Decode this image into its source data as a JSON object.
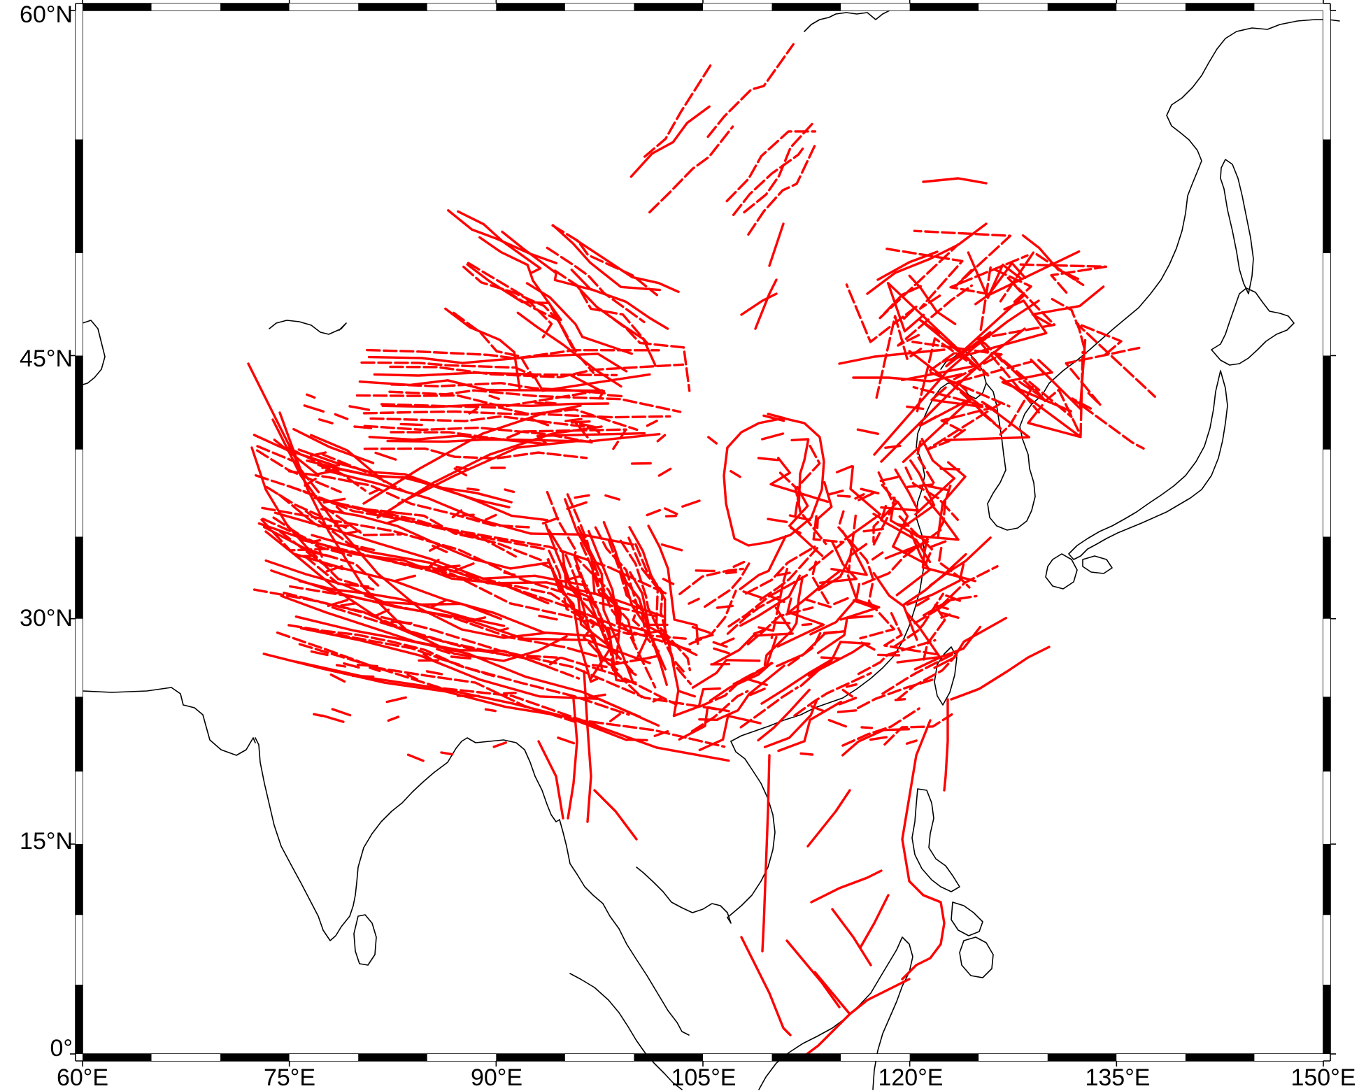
{
  "map": {
    "extent": {
      "lon": [
        60,
        150
      ],
      "lat": [
        0,
        60
      ]
    },
    "projection": "Mercator",
    "frame_style": "alternating black and white fancy frame",
    "colors": {
      "faults": "#ff0000",
      "coastline": "#000000",
      "background": "#ffffff",
      "frame_black": "#000000",
      "frame_white": "#ffffff"
    },
    "x_ticks": [
      {
        "lon": 60,
        "label": "60°E"
      },
      {
        "lon": 75,
        "label": "75°E"
      },
      {
        "lon": 90,
        "label": "90°E"
      },
      {
        "lon": 105,
        "label": "105°E"
      },
      {
        "lon": 120,
        "label": "120°E"
      },
      {
        "lon": 135,
        "label": "135°E"
      },
      {
        "lon": 150,
        "label": "150°E"
      }
    ],
    "y_ticks": [
      {
        "lat": 0,
        "label": "0°"
      },
      {
        "lat": 15,
        "label": "15°N"
      },
      {
        "lat": 30,
        "label": "30°N"
      },
      {
        "lat": 45,
        "label": "45°N"
      },
      {
        "lat": 60,
        "label": "60°N"
      }
    ],
    "layers": [
      "coastlines",
      "active-faults"
    ]
  }
}
